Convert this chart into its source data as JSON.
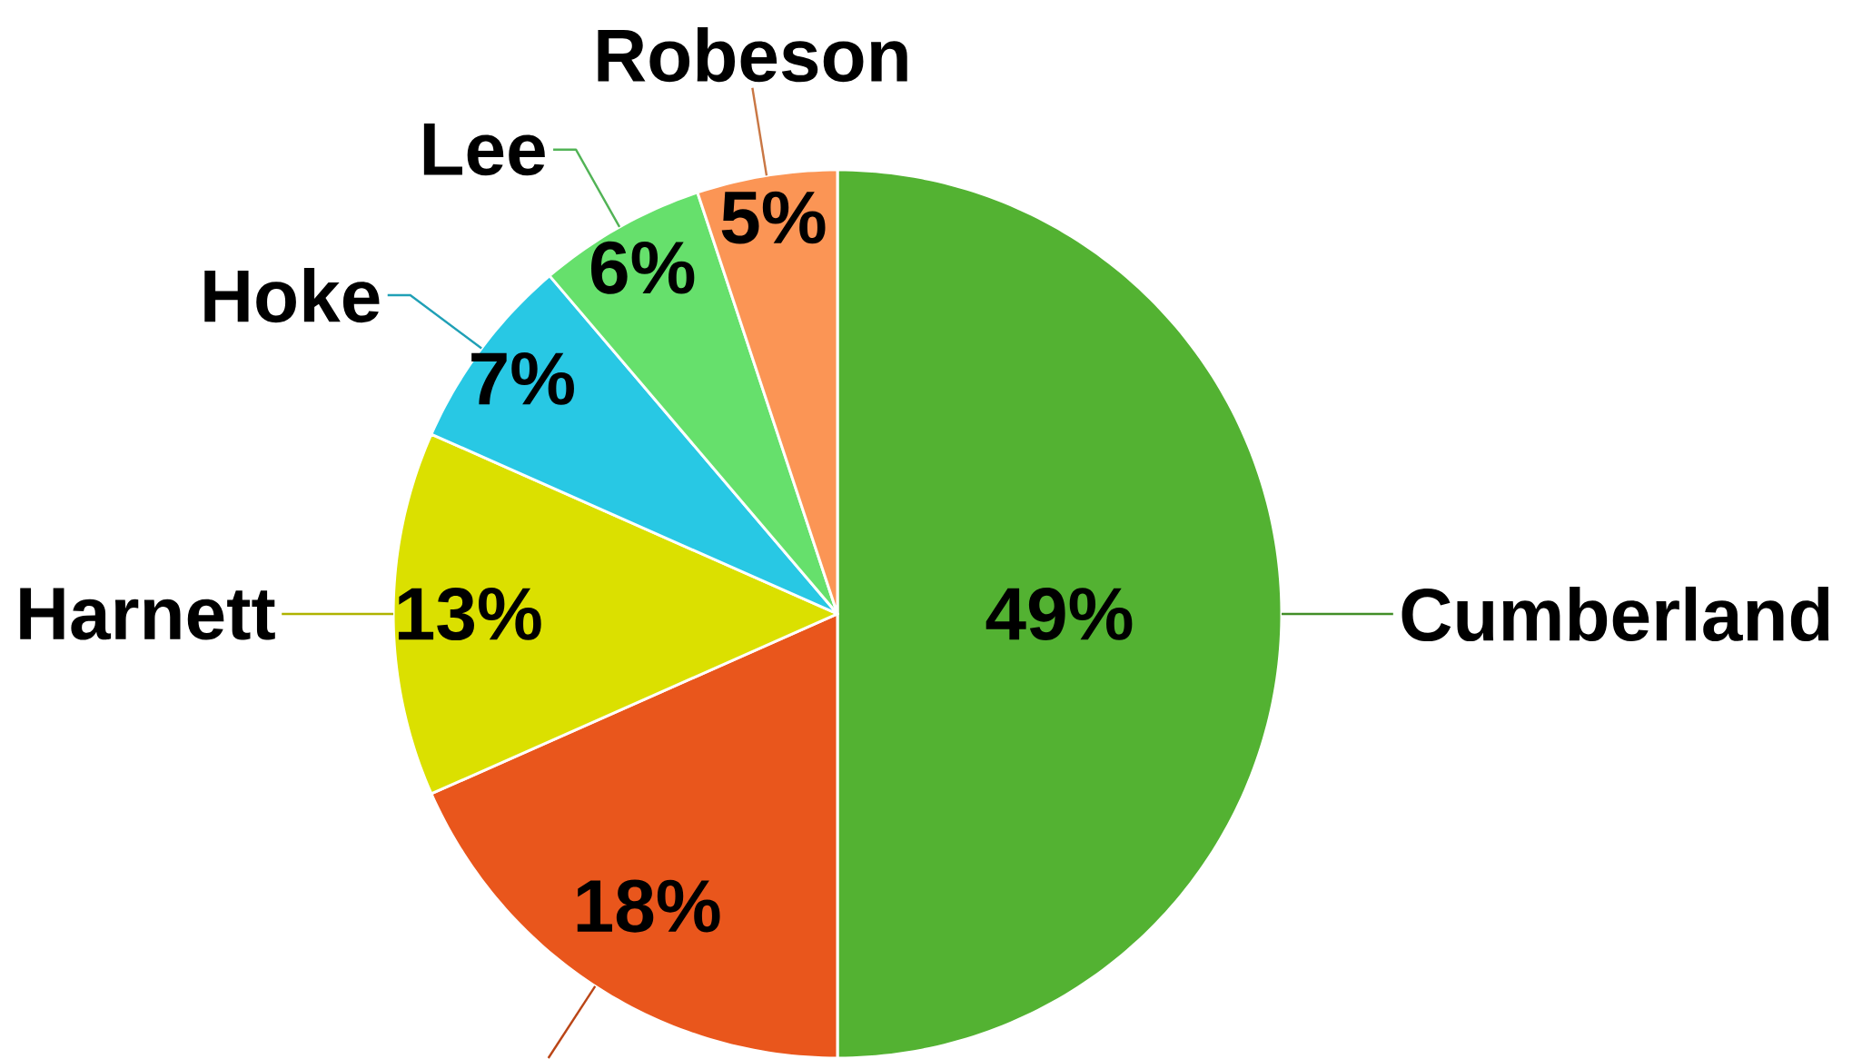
{
  "chart_data": {
    "type": "pie",
    "categories": [
      "Cumberland",
      null,
      "Harnett",
      "Hoke",
      "Lee",
      "Robeson"
    ],
    "values": [
      49,
      18,
      13,
      7,
      6,
      5
    ],
    "colors": [
      "#53b232",
      "#e9561c",
      "#dbe000",
      "#28c8e4",
      "#66e06c",
      "#fb9555"
    ],
    "value_labels": [
      "49%",
      "18%",
      "13%",
      "7%",
      "6%",
      "5%"
    ]
  }
}
